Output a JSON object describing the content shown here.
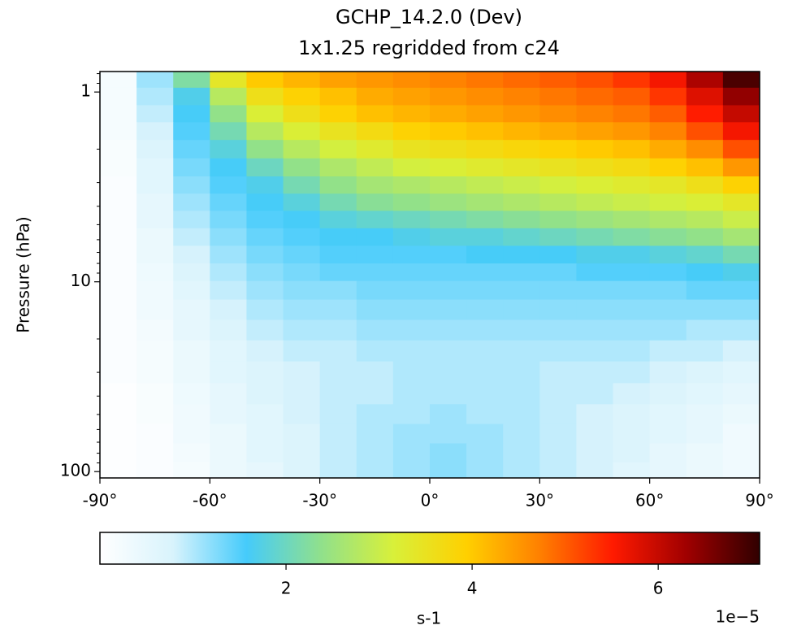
{
  "chart_data": {
    "type": "heatmap",
    "title": "GCHP_14.2.0 (Dev)",
    "subtitle": "1x1.25 regridded from c24",
    "y_label": "Pressure (hPa)",
    "x": [
      -85,
      -75,
      -65,
      -55,
      -45,
      -35,
      -25,
      -15,
      -5,
      5,
      15,
      25,
      35,
      45,
      55,
      65,
      75,
      85
    ],
    "y": [
      0.85,
      1.06,
      1.3,
      1.6,
      2.0,
      2.5,
      3.1,
      3.8,
      4.7,
      5.8,
      7.2,
      8.9,
      11,
      14,
      18,
      23,
      30,
      39,
      50,
      63,
      80,
      100
    ],
    "values": [
      [
        0.2,
        1.1,
        2.2,
        3.4,
        4.0,
        4.2,
        4.4,
        4.5,
        4.6,
        4.7,
        4.8,
        4.9,
        5.0,
        5.1,
        5.3,
        5.6,
        6.2,
        6.9
      ],
      [
        0.2,
        1.0,
        1.7,
        2.8,
        3.6,
        3.9,
        4.1,
        4.3,
        4.4,
        4.5,
        4.6,
        4.7,
        4.8,
        4.9,
        5.0,
        5.3,
        5.8,
        6.4
      ],
      [
        0.2,
        0.9,
        1.6,
        2.4,
        3.2,
        3.6,
        3.9,
        4.1,
        4.2,
        4.3,
        4.4,
        4.5,
        4.6,
        4.7,
        4.8,
        5.0,
        5.5,
        6.0
      ],
      [
        0.2,
        0.8,
        1.5,
        2.1,
        2.8,
        3.2,
        3.5,
        3.7,
        3.9,
        4.0,
        4.1,
        4.2,
        4.3,
        4.4,
        4.5,
        4.7,
        5.1,
        5.6
      ],
      [
        0.15,
        0.7,
        1.4,
        1.8,
        2.4,
        2.8,
        3.1,
        3.3,
        3.5,
        3.6,
        3.7,
        3.8,
        3.9,
        4.0,
        4.1,
        4.3,
        4.6,
        5.1
      ],
      [
        0.15,
        0.6,
        1.3,
        1.6,
        2.0,
        2.4,
        2.7,
        2.9,
        3.1,
        3.2,
        3.3,
        3.4,
        3.5,
        3.6,
        3.7,
        3.9,
        4.1,
        4.5
      ],
      [
        0.1,
        0.6,
        1.2,
        1.5,
        1.7,
        2.1,
        2.4,
        2.6,
        2.7,
        2.8,
        2.9,
        3.0,
        3.1,
        3.2,
        3.3,
        3.4,
        3.6,
        3.9
      ],
      [
        0.1,
        0.5,
        1.1,
        1.4,
        1.6,
        1.8,
        2.1,
        2.3,
        2.4,
        2.5,
        2.6,
        2.7,
        2.8,
        2.9,
        3.0,
        3.1,
        3.2,
        3.4
      ],
      [
        0.1,
        0.5,
        1.0,
        1.3,
        1.5,
        1.6,
        1.8,
        1.9,
        2.0,
        2.1,
        2.2,
        2.3,
        2.4,
        2.5,
        2.6,
        2.7,
        2.8,
        3.0
      ],
      [
        0.1,
        0.4,
        0.9,
        1.2,
        1.4,
        1.5,
        1.6,
        1.6,
        1.7,
        1.8,
        1.8,
        1.9,
        2.0,
        2.1,
        2.2,
        2.3,
        2.4,
        2.6
      ],
      [
        0.1,
        0.4,
        0.8,
        1.1,
        1.3,
        1.4,
        1.5,
        1.5,
        1.5,
        1.5,
        1.6,
        1.6,
        1.6,
        1.7,
        1.7,
        1.8,
        1.9,
        2.1
      ],
      [
        0.1,
        0.35,
        0.7,
        1.0,
        1.2,
        1.3,
        1.4,
        1.4,
        1.4,
        1.4,
        1.4,
        1.4,
        1.4,
        1.5,
        1.5,
        1.5,
        1.6,
        1.7
      ],
      [
        0.1,
        0.3,
        0.6,
        0.9,
        1.1,
        1.2,
        1.2,
        1.3,
        1.3,
        1.3,
        1.3,
        1.3,
        1.3,
        1.3,
        1.3,
        1.3,
        1.4,
        1.4
      ],
      [
        0.1,
        0.3,
        0.5,
        0.8,
        1.0,
        1.1,
        1.1,
        1.2,
        1.2,
        1.2,
        1.2,
        1.2,
        1.2,
        1.2,
        1.2,
        1.2,
        1.2,
        1.2
      ],
      [
        0.1,
        0.25,
        0.5,
        0.7,
        0.9,
        1.0,
        1.0,
        1.1,
        1.1,
        1.1,
        1.1,
        1.1,
        1.1,
        1.1,
        1.1,
        1.1,
        1.0,
        1.0
      ],
      [
        0.1,
        0.2,
        0.4,
        0.6,
        0.8,
        0.9,
        0.9,
        1.0,
        1.0,
        1.0,
        1.0,
        1.0,
        1.0,
        1.0,
        1.0,
        0.9,
        0.9,
        0.8
      ],
      [
        0.1,
        0.2,
        0.4,
        0.6,
        0.7,
        0.8,
        0.9,
        0.9,
        1.0,
        1.0,
        1.0,
        1.0,
        0.9,
        0.9,
        0.9,
        0.8,
        0.7,
        0.6
      ],
      [
        0.05,
        0.15,
        0.35,
        0.5,
        0.7,
        0.8,
        0.9,
        0.9,
        1.0,
        1.0,
        1.0,
        1.0,
        0.9,
        0.9,
        0.8,
        0.7,
        0.6,
        0.5
      ],
      [
        0.05,
        0.15,
        0.3,
        0.5,
        0.6,
        0.8,
        0.9,
        1.0,
        1.0,
        1.1,
        1.0,
        1.0,
        0.9,
        0.8,
        0.7,
        0.6,
        0.5,
        0.4
      ],
      [
        0.05,
        0.1,
        0.3,
        0.4,
        0.6,
        0.7,
        0.9,
        1.0,
        1.1,
        1.1,
        1.1,
        1.0,
        0.9,
        0.8,
        0.7,
        0.6,
        0.5,
        0.3
      ],
      [
        0.05,
        0.1,
        0.25,
        0.4,
        0.6,
        0.7,
        0.9,
        1.0,
        1.1,
        1.2,
        1.1,
        1.0,
        0.9,
        0.8,
        0.7,
        0.5,
        0.4,
        0.3
      ],
      [
        0.05,
        0.1,
        0.2,
        0.4,
        0.5,
        0.7,
        0.9,
        1.0,
        1.1,
        1.2,
        1.1,
        1.0,
        0.9,
        0.8,
        0.6,
        0.5,
        0.4,
        0.3
      ]
    ],
    "xlim": [
      -90,
      90
    ],
    "xticks": [
      {
        "value": -90,
        "label": "-90°"
      },
      {
        "value": -60,
        "label": "-60°"
      },
      {
        "value": -30,
        "label": "-30°"
      },
      {
        "value": 0,
        "label": "0°"
      },
      {
        "value": 30,
        "label": "30°"
      },
      {
        "value": 60,
        "label": "60°"
      },
      {
        "value": 90,
        "label": "90°"
      }
    ],
    "ylim": [
      108,
      0.78
    ],
    "yscale": "log",
    "yticks": [
      1,
      10,
      100
    ],
    "yminorticks": [
      0.8,
      0.9,
      2,
      3,
      4,
      5,
      6,
      7,
      8,
      9,
      20,
      30,
      40,
      50,
      60,
      70,
      80,
      90
    ],
    "colorbar": {
      "label": "s-1",
      "offset_label": "1e−5",
      "lim": [
        0,
        7.09
      ],
      "ticks": [
        2,
        4,
        6
      ],
      "colors": [
        "#ffffff",
        "#d8f3fc",
        "#45cbfb",
        "#8fe08d",
        "#d8f03a",
        "#ffd000",
        "#ff8000",
        "#ff1a00",
        "#a00000",
        "#300000"
      ]
    }
  }
}
